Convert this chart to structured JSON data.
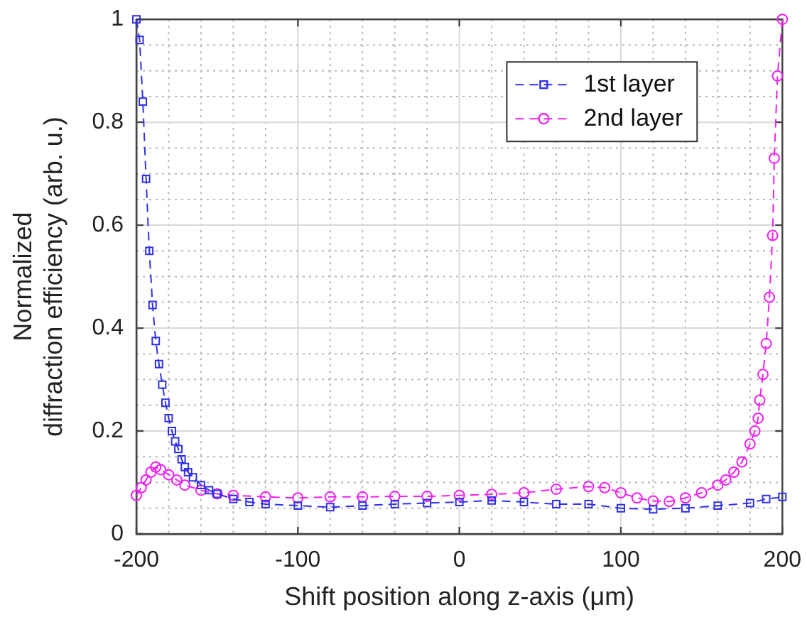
{
  "chart_data": {
    "type": "line",
    "xlabel": "Shift position along z-axis (μm)",
    "ylabel": "Normalized\ndiffraction efficiency (arb. u.)",
    "xlim": [
      -200,
      200
    ],
    "ylim": [
      0,
      1
    ],
    "xticks": [
      -200,
      {
        "value": -180,
        "label": null
      },
      {
        "value": -160,
        "label": null
      },
      {
        "value": -140,
        "label": null
      },
      {
        "value": -120,
        "label": null
      },
      -100,
      {
        "value": -80,
        "label": null
      },
      {
        "value": -60,
        "label": null
      },
      {
        "value": -40,
        "label": null
      },
      {
        "value": -20,
        "label": null
      },
      0,
      {
        "value": 20,
        "label": null
      },
      {
        "value": 40,
        "label": null
      },
      {
        "value": 60,
        "label": null
      },
      {
        "value": 80,
        "label": null
      },
      100,
      {
        "value": 120,
        "label": null
      },
      {
        "value": 140,
        "label": null
      },
      {
        "value": 160,
        "label": null
      },
      {
        "value": 180,
        "label": null
      },
      200
    ],
    "yticks": [
      0,
      {
        "value": 0.05,
        "label": null
      },
      {
        "value": 0.1,
        "label": null
      },
      {
        "value": 0.15,
        "label": null
      },
      0.2,
      {
        "value": 0.25,
        "label": null
      },
      {
        "value": 0.3,
        "label": null
      },
      {
        "value": 0.35,
        "label": null
      },
      0.4,
      {
        "value": 0.45,
        "label": null
      },
      {
        "value": 0.5,
        "label": null
      },
      {
        "value": 0.55,
        "label": null
      },
      0.6,
      {
        "value": 0.65,
        "label": null
      },
      {
        "value": 0.7,
        "label": null
      },
      {
        "value": 0.75,
        "label": null
      },
      0.8,
      {
        "value": 0.85,
        "label": null
      },
      {
        "value": 0.9,
        "label": null
      },
      {
        "value": 0.95,
        "label": null
      },
      1
    ],
    "grid": true,
    "legend": "top right",
    "line_style": "dashed",
    "series": [
      {
        "name": "1st layer",
        "color": "#3030e8",
        "marker": "square",
        "x": [
          -200,
          -198,
          -196,
          -194,
          -192,
          -190,
          -188,
          -186,
          -184,
          -182,
          -180,
          -178,
          -176,
          -174,
          -172,
          -170,
          -168,
          -165,
          -160,
          -155,
          -150,
          -140,
          -130,
          -120,
          -100,
          -80,
          -60,
          -40,
          -20,
          0,
          20,
          40,
          60,
          80,
          100,
          120,
          140,
          160,
          180,
          190,
          200
        ],
        "values": [
          1.0,
          0.96,
          0.84,
          0.69,
          0.55,
          0.445,
          0.375,
          0.33,
          0.29,
          0.255,
          0.225,
          0.2,
          0.18,
          0.165,
          0.145,
          0.13,
          0.12,
          0.11,
          0.095,
          0.085,
          0.078,
          0.068,
          0.062,
          0.058,
          0.055,
          0.052,
          0.055,
          0.058,
          0.06,
          0.062,
          0.065,
          0.062,
          0.058,
          0.058,
          0.05,
          0.048,
          0.05,
          0.055,
          0.06,
          0.068,
          0.072
        ]
      },
      {
        "name": "2nd layer",
        "color": "#f020f0",
        "marker": "circle",
        "x": [
          -200,
          -197,
          -194,
          -191,
          -188,
          -185,
          -180,
          -175,
          -170,
          -160,
          -150,
          -140,
          -120,
          -100,
          -80,
          -60,
          -40,
          -20,
          0,
          20,
          40,
          60,
          80,
          90,
          100,
          110,
          120,
          130,
          140,
          150,
          160,
          165,
          170,
          175,
          180,
          183,
          185,
          186,
          188,
          190,
          192,
          194,
          195,
          197,
          200
        ],
        "values": [
          0.075,
          0.09,
          0.105,
          0.12,
          0.13,
          0.125,
          0.115,
          0.105,
          0.095,
          0.085,
          0.078,
          0.075,
          0.072,
          0.07,
          0.072,
          0.072,
          0.073,
          0.073,
          0.075,
          0.077,
          0.08,
          0.087,
          0.092,
          0.09,
          0.08,
          0.07,
          0.064,
          0.063,
          0.07,
          0.08,
          0.095,
          0.105,
          0.12,
          0.14,
          0.175,
          0.2,
          0.225,
          0.26,
          0.31,
          0.37,
          0.46,
          0.58,
          0.73,
          0.89,
          1.0
        ]
      }
    ]
  }
}
